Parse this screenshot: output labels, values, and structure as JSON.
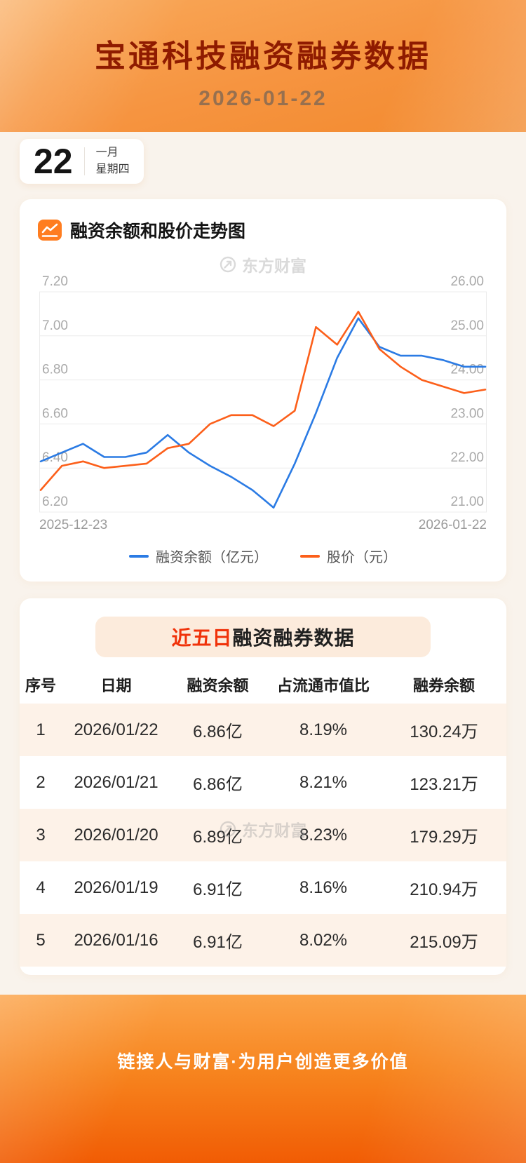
{
  "header": {
    "title": "宝通科技融资融券数据",
    "date": "2026-01-22"
  },
  "calendar": {
    "day": "22",
    "month": "一月",
    "weekday": "星期四"
  },
  "chart_section": {
    "title": "融资余额和股价走势图",
    "watermark": "东方财富"
  },
  "chart_data": {
    "type": "line",
    "title": "融资余额和股价走势图",
    "x_start_label": "2025-12-23",
    "x_end_label": "2026-01-22",
    "grid": true,
    "legend_position": "bottom",
    "left_axis": {
      "label": "融资余额（亿元）",
      "min": 6.2,
      "max": 7.2,
      "ticks": [
        "7.20",
        "7.00",
        "6.80",
        "6.60",
        "6.40",
        "6.20"
      ]
    },
    "right_axis": {
      "label": "股价（元）",
      "min": 21.0,
      "max": 26.0,
      "ticks": [
        "26.00",
        "25.00",
        "24.00",
        "23.00",
        "22.00",
        "21.00"
      ]
    },
    "series": [
      {
        "name": "融资余额（亿元）",
        "axis": "left",
        "color": "#2b7be4",
        "values": [
          6.43,
          6.47,
          6.51,
          6.45,
          6.45,
          6.47,
          6.55,
          6.47,
          6.41,
          6.36,
          6.3,
          6.22,
          6.42,
          6.65,
          6.9,
          7.08,
          6.95,
          6.91,
          6.91,
          6.89,
          6.86,
          6.86
        ]
      },
      {
        "name": "股价（元）",
        "axis": "right",
        "color": "#fc5f1a",
        "values": [
          21.5,
          22.05,
          22.15,
          22.0,
          22.05,
          22.1,
          22.45,
          22.55,
          23.0,
          23.2,
          23.2,
          22.95,
          23.3,
          25.2,
          24.8,
          25.55,
          24.7,
          24.3,
          24.0,
          23.85,
          23.7,
          23.78
        ]
      }
    ]
  },
  "table_section": {
    "title_highlight": "近五日",
    "title_rest": "融资融券数据",
    "watermark": "东方财富",
    "columns": [
      "序号",
      "日期",
      "融资余额",
      "占流通市值比",
      "融券余额"
    ],
    "rows": [
      [
        "1",
        "2026/01/22",
        "6.86亿",
        "8.19%",
        "130.24万"
      ],
      [
        "2",
        "2026/01/21",
        "6.86亿",
        "8.21%",
        "123.21万"
      ],
      [
        "3",
        "2026/01/20",
        "6.89亿",
        "8.23%",
        "179.29万"
      ],
      [
        "4",
        "2026/01/19",
        "6.91亿",
        "8.16%",
        "210.94万"
      ],
      [
        "5",
        "2026/01/16",
        "6.91亿",
        "8.02%",
        "215.09万"
      ]
    ]
  },
  "footer": {
    "slogan": "链接人与财富·为用户创造更多价值"
  },
  "colors": {
    "accent_orange": "#f57a1f",
    "title_red": "#8f1b00",
    "line_blue": "#2b7be4",
    "line_orange": "#fc5f1a",
    "row_stripe": "#fdf2e8",
    "badge_bg": "#fcebdc",
    "badge_highlight": "#f0320a"
  }
}
